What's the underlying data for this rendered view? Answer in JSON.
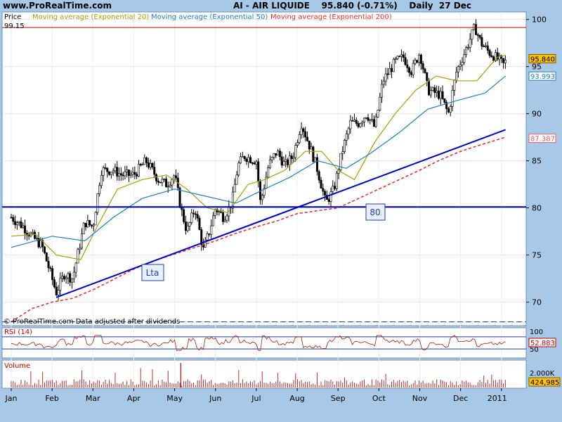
{
  "header": {
    "site": "www.ProRealTime.com",
    "title": "AI - AIR LIQUIDE    95.840 (-0.71%)    Daily  27 Dec"
  },
  "price_panel": {
    "legend_price": "Price",
    "legend_ema20": "Moving average (Exponential 20)",
    "legend_ema50": "Moving average (Exponential 50)",
    "legend_ema200": "Moving average (Exponential 200)",
    "last_high_label": "99.15",
    "footer": "© ProRealTime.com  Data adjusted after dividends",
    "annotation_lta": "Lta",
    "annotation_80": "80"
  },
  "rsi_panel": {
    "label": "RSI (14)",
    "value_badge": "52.883",
    "tick_100": "100",
    "tick_50": "50"
  },
  "volume_panel": {
    "label": "Volume",
    "tick": "2.000K",
    "value_badge": "424,985"
  },
  "colors": {
    "background": "#a8c8e8",
    "panel": "#ffffff",
    "ema20": "#a0a000",
    "ema50": "#2080c0",
    "ema200": "#e03030",
    "trendline": "#0000c0",
    "badge_price": "#ffc000",
    "badge_ema200": "#e06060"
  },
  "chart_data": {
    "type": "line",
    "title": "AI - AIR LIQUIDE",
    "timeframe": "Daily",
    "last_close": 95.84,
    "change_pct": -0.71,
    "x_tick_labels": [
      "Jan",
      "Feb",
      "Mar",
      "Apr",
      "May",
      "Jun",
      "Jul",
      "Aug",
      "Sep",
      "Oct",
      "Nov",
      "Dec",
      "2011"
    ],
    "y_ticks": [
      70,
      75,
      80,
      85,
      90,
      95,
      100
    ],
    "ylim": [
      67.5,
      100.8
    ],
    "badges": [
      {
        "label": "95.840",
        "value": 95.84,
        "series": "Price"
      },
      {
        "label": "93.993",
        "value": 93.993,
        "series": "EMA50"
      },
      {
        "label": "87.387",
        "value": 87.387,
        "series": "EMA200"
      }
    ],
    "horizontal_lines": [
      {
        "name": "resistance",
        "value": 99.15
      },
      {
        "name": "support",
        "value": 80.1
      }
    ],
    "trendline": {
      "from": [
        1.1,
        70.5
      ],
      "to": [
        12.1,
        88.3
      ]
    },
    "series": [
      {
        "name": "Price",
        "x": [
          0.0,
          0.3,
          0.5,
          0.75,
          1.0,
          1.1,
          1.3,
          1.5,
          1.8,
          2.0,
          2.2,
          2.5,
          2.7,
          3.0,
          3.3,
          3.6,
          3.8,
          4.0,
          4.15,
          4.3,
          4.5,
          4.7,
          4.85,
          5.0,
          5.2,
          5.4,
          5.55,
          5.7,
          6.0,
          6.1,
          6.3,
          6.5,
          6.7,
          6.9,
          7.1,
          7.35,
          7.5,
          7.7,
          7.9,
          8.1,
          8.3,
          8.5,
          8.7,
          8.9,
          9.1,
          9.4,
          9.6,
          9.8,
          10.0,
          10.2,
          10.5,
          10.7,
          10.9,
          11.1,
          11.35,
          11.5,
          11.7,
          11.9,
          12.05,
          12.15
        ],
        "values": [
          79.0,
          78.0,
          77.0,
          76.0,
          72.5,
          71.0,
          73.0,
          72.5,
          78.5,
          78.0,
          84.0,
          84.0,
          83.5,
          83.5,
          85.0,
          83.0,
          82.5,
          83.5,
          80.0,
          77.5,
          80.0,
          75.5,
          77.5,
          80.0,
          79.0,
          80.5,
          84.5,
          85.5,
          85.0,
          80.5,
          84.5,
          86.0,
          84.5,
          85.5,
          89.0,
          86.0,
          84.0,
          80.5,
          82.0,
          86.0,
          89.0,
          89.0,
          90.0,
          88.5,
          93.5,
          95.5,
          96.0,
          94.5,
          96.5,
          92.5,
          92.0,
          90.0,
          94.5,
          96.5,
          99.2,
          97.5,
          96.5,
          95.84,
          95.2,
          95.84
        ]
      },
      {
        "name": "EMA20",
        "x": [
          0.0,
          0.6,
          1.1,
          1.7,
          2.1,
          2.6,
          3.2,
          3.8,
          4.3,
          4.8,
          5.3,
          5.8,
          6.2,
          6.7,
          7.2,
          7.6,
          8.0,
          8.4,
          8.9,
          9.4,
          9.9,
          10.4,
          10.9,
          11.4,
          11.9,
          12.1
        ],
        "values": [
          77.0,
          77.2,
          75.0,
          74.5,
          78.0,
          82.0,
          83.0,
          83.5,
          82.0,
          80.0,
          79.5,
          82.5,
          83.0,
          84.0,
          86.0,
          86.0,
          84.0,
          83.0,
          87.0,
          90.0,
          92.5,
          94.0,
          93.5,
          93.5,
          96.0,
          96.2
        ]
      },
      {
        "name": "EMA50",
        "x": [
          0.0,
          1.0,
          1.8,
          2.5,
          3.2,
          4.0,
          4.8,
          5.5,
          6.2,
          6.8,
          7.5,
          8.2,
          8.8,
          9.5,
          10.2,
          11.0,
          11.6,
          12.1
        ],
        "values": [
          75.8,
          77.0,
          76.5,
          79.0,
          81.0,
          82.0,
          81.2,
          80.5,
          82.0,
          83.2,
          85.0,
          84.2,
          85.8,
          88.0,
          90.5,
          91.5,
          92.2,
          94.0
        ]
      },
      {
        "name": "EMA200",
        "x": [
          0.0,
          0.5,
          1.0,
          1.5,
          2.0,
          2.5,
          3.0,
          3.5,
          4.0,
          4.5,
          5.0,
          5.5,
          6.0,
          6.5,
          7.0,
          7.5,
          8.0,
          8.5,
          9.0,
          9.5,
          10.0,
          10.5,
          11.0,
          11.5,
          12.1
        ],
        "values": [
          67.9,
          69.3,
          70.0,
          70.4,
          71.3,
          72.4,
          73.5,
          74.4,
          75.1,
          75.8,
          76.5,
          77.3,
          78.0,
          78.6,
          79.4,
          79.7,
          80.0,
          81.0,
          82.0,
          83.0,
          84.0,
          85.1,
          86.0,
          86.7,
          87.5
        ]
      }
    ],
    "rsi": {
      "name": "RSI (14)",
      "ylim": [
        0,
        100
      ],
      "levels": [
        30,
        70
      ],
      "last": 52.883
    },
    "volume": {
      "name": "Volume",
      "last": 424985,
      "max_tick_label": "2.000K"
    }
  }
}
